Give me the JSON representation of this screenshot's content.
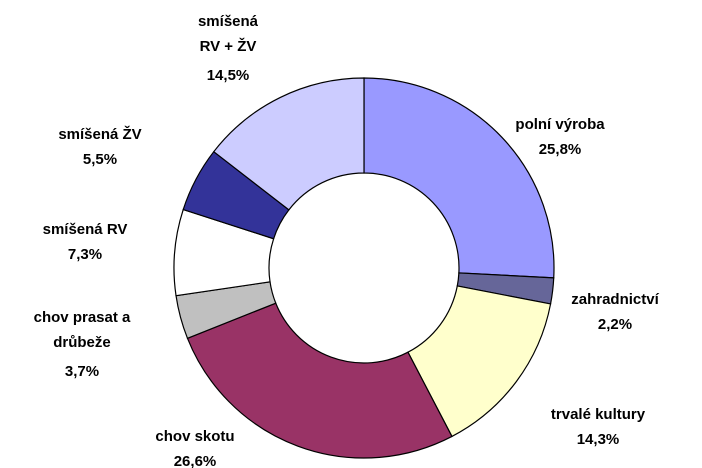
{
  "chart_data": {
    "type": "donut",
    "categories": [
      "polní výroba",
      "zahradnictví",
      "trvalé kultury",
      "chov skotu",
      "chov prasat a\ndrůbeže",
      "smíšená RV",
      "smíšená ŽV",
      "smíšená\nRV + ŽV"
    ],
    "values": [
      25.8,
      2.2,
      14.3,
      26.6,
      3.7,
      7.3,
      5.5,
      14.5
    ],
    "value_labels": [
      "25,8%",
      "2,2%",
      "14,3%",
      "26,6%",
      "3,7%",
      "7,3%",
      "5,5%",
      "14,5%"
    ],
    "colors": [
      "#9999ff",
      "#666699",
      "#ffffcc",
      "#993366",
      "#c0c0c0",
      "#ffffff",
      "#333399",
      "#ccccff"
    ]
  }
}
